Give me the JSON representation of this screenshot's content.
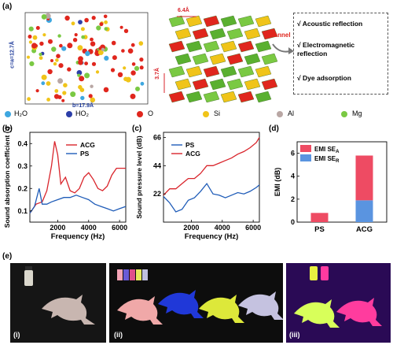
{
  "panel_a": {
    "label": "(a)",
    "axis_c": "c=a=12.7Å",
    "axis_b": "b=17.9Å",
    "dim_1": "6.4Å",
    "dim_2": "3.7Å",
    "channel": "Channel",
    "features": [
      "√ Acoustic reflection",
      "√ Electromagnetic reflection",
      "√ Dye adsorption"
    ],
    "legend": [
      {
        "label": "H₂O",
        "color": "#3ea7e0"
      },
      {
        "label": "HO₂",
        "color": "#2c3ea8"
      },
      {
        "label": "O",
        "color": "#e0261d"
      },
      {
        "label": "Si",
        "color": "#f0c419"
      },
      {
        "label": "Al",
        "color": "#b9a7a4"
      },
      {
        "label": "Mg",
        "color": "#7ac943"
      }
    ]
  },
  "panel_b": {
    "label": "(b)",
    "chart_data": {
      "type": "line",
      "xlabel": "Frequency (Hz)",
      "ylabel": "Sound absorption coefficient (-)",
      "xlim": [
        200,
        6400
      ],
      "ylim": [
        0.05,
        0.45
      ],
      "xticks": [
        2000,
        4000,
        6000
      ],
      "yticks": [
        0.1,
        0.2,
        0.3,
        0.4
      ],
      "legend": "top-right",
      "series": [
        {
          "name": "ACG",
          "color": "#d9242b",
          "x": [
            200,
            600,
            1000,
            1300,
            1600,
            1800,
            2000,
            2200,
            2500,
            2800,
            3100,
            3400,
            3700,
            4000,
            4300,
            4600,
            4900,
            5200,
            5500,
            5800,
            6100,
            6400
          ],
          "y": [
            0.09,
            0.13,
            0.14,
            0.19,
            0.3,
            0.41,
            0.35,
            0.22,
            0.25,
            0.19,
            0.18,
            0.2,
            0.25,
            0.27,
            0.24,
            0.2,
            0.19,
            0.21,
            0.26,
            0.29,
            0.29,
            0.29
          ]
        },
        {
          "name": "PS",
          "color": "#1f5cb8",
          "x": [
            200,
            500,
            800,
            1000,
            1300,
            1600,
            2000,
            2400,
            2800,
            3200,
            3600,
            4000,
            4400,
            4800,
            5200,
            5600,
            6000,
            6400
          ],
          "y": [
            0.09,
            0.12,
            0.2,
            0.13,
            0.13,
            0.14,
            0.15,
            0.16,
            0.16,
            0.17,
            0.16,
            0.15,
            0.13,
            0.12,
            0.11,
            0.1,
            0.11,
            0.12
          ]
        }
      ]
    }
  },
  "panel_c": {
    "label": "(c)",
    "chart_data": {
      "type": "line",
      "xlabel": "Frequency (Hz)",
      "ylabel": "Sound pressure level (dB)",
      "xlim": [
        200,
        6400
      ],
      "ylim": [
        0,
        70
      ],
      "xticks": [
        2000,
        4000,
        6000
      ],
      "yticks": [
        22,
        44,
        66
      ],
      "legend": "top-left",
      "series": [
        {
          "name": "PS",
          "color": "#1f5cb8",
          "x": [
            200,
            600,
            1000,
            1400,
            1800,
            2200,
            2600,
            3000,
            3400,
            3800,
            4200,
            4600,
            5000,
            5400,
            5800,
            6200,
            6400
          ],
          "y": [
            20,
            15,
            8,
            10,
            17,
            19,
            24,
            30,
            22,
            21,
            19,
            21,
            23,
            22,
            24,
            27,
            29
          ]
        },
        {
          "name": "ACG",
          "color": "#d9242b",
          "x": [
            200,
            600,
            1000,
            1400,
            1800,
            2200,
            2600,
            3000,
            3400,
            3800,
            4200,
            4600,
            5000,
            5400,
            5800,
            6200,
            6400
          ],
          "y": [
            21,
            26,
            26,
            30,
            34,
            34,
            38,
            44,
            44,
            46,
            48,
            50,
            53,
            55,
            58,
            62,
            66
          ]
        }
      ]
    }
  },
  "panel_d": {
    "label": "(d)",
    "chart_data": {
      "type": "bar",
      "ylabel": "EMI (dB)",
      "categories": [
        "PS",
        "ACG"
      ],
      "ylim": [
        0,
        7
      ],
      "yticks": [
        0,
        2,
        4,
        6
      ],
      "legend": "top-left",
      "series": [
        {
          "name": "EMI SE_R",
          "legend_main": "EMI SE",
          "legend_sub": "R",
          "color": "#5a94e0",
          "values": [
            0,
            1.9
          ]
        },
        {
          "name": "EMI SE_A",
          "legend_main": "EMI SE",
          "legend_sub": "A",
          "color": "#ee4b63",
          "values": [
            0.8,
            3.9
          ]
        }
      ]
    }
  },
  "panel_e": {
    "label": "(e)",
    "captions": [
      "(i)",
      "(ii)",
      "(iii)"
    ]
  }
}
